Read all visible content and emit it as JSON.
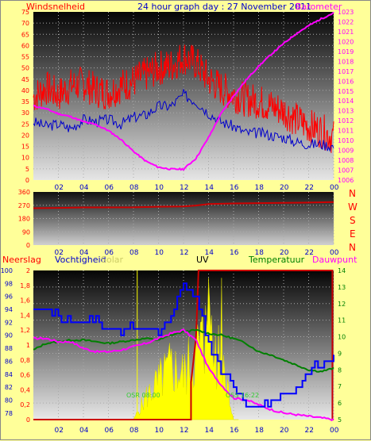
{
  "header": {
    "left_label": "Windsnelheid",
    "title": "24 hour graph day : 27 November 2011",
    "right_label": "Barometer"
  },
  "wind_panel": {
    "left_ticks": [
      "0",
      "5",
      "10",
      "15",
      "20",
      "25",
      "30",
      "35",
      "40",
      "45",
      "50",
      "55",
      "60",
      "65",
      "70",
      "75"
    ],
    "right_ticks": [
      "1006",
      "1007",
      "1008",
      "1009",
      "1010",
      "1011",
      "1012",
      "1013",
      "1014",
      "1015",
      "1016",
      "1017",
      "1018",
      "1019",
      "1020",
      "1021",
      "1022",
      "1023"
    ],
    "x_ticks": [
      "02",
      "04",
      "06",
      "08",
      "10",
      "12",
      "14",
      "16",
      "18",
      "20",
      "22",
      "00"
    ]
  },
  "dir_panel": {
    "left_ticks": [
      "0",
      "90",
      "180",
      "270",
      "360"
    ],
    "compass": [
      "N",
      "W",
      "S",
      "E",
      "N"
    ],
    "x_ticks": [
      "02",
      "04",
      "06",
      "08",
      "10",
      "12",
      "14",
      "16",
      "18",
      "20",
      "22",
      "00"
    ]
  },
  "bottom_header": {
    "neerslag": "Neerslag",
    "vochtigheid": "Vochtigheid",
    "solar": "Solar",
    "uv": "UV",
    "temperatuur": "Temperatuur",
    "dauwpunt": "Dauwpunt"
  },
  "bottom_panel": {
    "humidity_ticks": [
      "78",
      "80",
      "82",
      "84",
      "86",
      "88",
      "90",
      "92",
      "94",
      "96",
      "98",
      "100"
    ],
    "rain_ticks": [
      "0",
      "0,2",
      "0,4",
      "0,6",
      "0,8",
      "1",
      "1,2",
      "1,4",
      "1,6",
      "1,8",
      "2"
    ],
    "temp_ticks": [
      "5",
      "6",
      "7",
      "8",
      "9",
      "10",
      "11",
      "12",
      "13",
      "14"
    ],
    "x_ticks": [
      "02",
      "04",
      "06",
      "08",
      "10",
      "12",
      "14",
      "16",
      "18",
      "20",
      "22",
      "00"
    ],
    "annotations": [
      "OSR 08:00",
      "OSS 16:22"
    ]
  },
  "colors": {
    "background": "#ffff99",
    "wind_gust": "#ff0000",
    "wind_avg": "#0000cc",
    "barometer": "#ff00ff",
    "direction": "#cc0000",
    "humidity": "#0000ff",
    "solar": "#ffff00",
    "temperature": "#008000",
    "dewpoint": "#ff00ff",
    "rain": "#cc0000"
  },
  "chart_data": [
    {
      "type": "line",
      "x_hours": [
        0,
        1,
        2,
        3,
        4,
        5,
        6,
        7,
        8,
        9,
        10,
        11,
        12,
        13,
        14,
        15,
        16,
        17,
        18,
        19,
        20,
        21,
        22,
        23,
        24
      ],
      "x_ticks": [
        "02",
        "04",
        "06",
        "08",
        "10",
        "12",
        "14",
        "16",
        "18",
        "20",
        "22",
        "00"
      ],
      "series": [
        {
          "name": "Windsnelheid",
          "axis": "left",
          "values": [
            37,
            41,
            38,
            42,
            43,
            40,
            39,
            42,
            44,
            47,
            50,
            51,
            55,
            52,
            45,
            41,
            38,
            36,
            35,
            33,
            31,
            27,
            24,
            22,
            19
          ]
        },
        {
          "name": "",
          "axis": "left",
          "values": [
            26,
            24,
            25,
            23,
            27,
            26,
            27,
            25,
            28,
            29,
            33,
            33,
            38,
            35,
            30,
            26,
            24,
            21,
            21,
            20,
            19,
            17,
            16,
            16,
            15
          ]
        },
        {
          "name": "Barometer",
          "axis": "right",
          "values": [
            1013.5,
            1013.2,
            1012.7,
            1012.4,
            1011.9,
            1011.6,
            1011.0,
            1010.1,
            1008.9,
            1007.9,
            1007.3,
            1007.1,
            1007.1,
            1008.2,
            1010.3,
            1012.7,
            1014.5,
            1016.1,
            1017.5,
            1018.7,
            1019.8,
            1020.8,
            1021.6,
            1022.3,
            1022.9
          ]
        }
      ],
      "ylim_left": [
        0,
        75
      ],
      "ylim_right": [
        1006,
        1023
      ]
    },
    {
      "type": "line",
      "x_hours": [
        0,
        2,
        4,
        6,
        8,
        10,
        12,
        13,
        14,
        16,
        18,
        20,
        22,
        24
      ],
      "series": [
        {
          "name": "",
          "values": [
            250,
            252,
            255,
            255,
            256,
            260,
            262,
            268,
            278,
            282,
            284,
            286,
            288,
            292
          ]
        }
      ],
      "ylim": [
        0,
        360
      ]
    },
    {
      "type": "line",
      "x_hours": [
        0,
        1,
        2,
        3,
        4,
        5,
        6,
        7,
        8,
        9,
        10,
        11,
        12,
        13,
        14,
        15,
        16,
        17,
        18,
        19,
        20,
        21,
        22,
        23,
        24
      ],
      "series": [
        {
          "name": "Vochtigheid",
          "axis": "humidity",
          "values": [
            95,
            94,
            93,
            92,
            92,
            92,
            91,
            91,
            91,
            91,
            90,
            93,
            98,
            96,
            89,
            85,
            82,
            80,
            79,
            80,
            81,
            82,
            84,
            86,
            86
          ]
        },
        {
          "name": "Temperatuur",
          "axis": "temp",
          "values": [
            9.2,
            9.6,
            9.7,
            9.8,
            9.8,
            9.7,
            9.6,
            9.7,
            9.8,
            9.9,
            9.8,
            10.1,
            10.3,
            10.4,
            10.2,
            10.1,
            9.9,
            9.6,
            9.1,
            8.9,
            8.6,
            8.3,
            8.0,
            7.9,
            8.1
          ]
        },
        {
          "name": "Dauwpunt",
          "axis": "temp",
          "values": [
            9.9,
            9.9,
            9.7,
            9.7,
            9.3,
            9.1,
            9.1,
            9.2,
            9.4,
            9.6,
            9.9,
            10.2,
            10.4,
            9.8,
            8.1,
            7.1,
            6.3,
            6.2,
            5.9,
            5.6,
            5.4,
            5.3,
            5.2,
            5.1,
            5.0
          ]
        },
        {
          "name": "Solar",
          "axis": "pct",
          "values": [
            0,
            0,
            0,
            0,
            0,
            0,
            0,
            0,
            0,
            15,
            25,
            35,
            30,
            45,
            60,
            40,
            0,
            0,
            0,
            0,
            0,
            0,
            0,
            0,
            0
          ]
        },
        {
          "name": "Neerslag",
          "axis": "rain",
          "values": [
            0,
            0,
            0,
            0,
            0,
            0,
            0,
            0,
            0,
            0,
            0,
            0,
            0,
            2,
            2,
            2,
            2,
            2,
            2,
            2,
            2,
            2,
            2,
            2,
            2
          ]
        }
      ],
      "ylim_humidity": [
        77,
        100
      ],
      "ylim_rain": [
        0,
        2
      ],
      "ylim_temp": [
        5,
        14
      ]
    }
  ]
}
